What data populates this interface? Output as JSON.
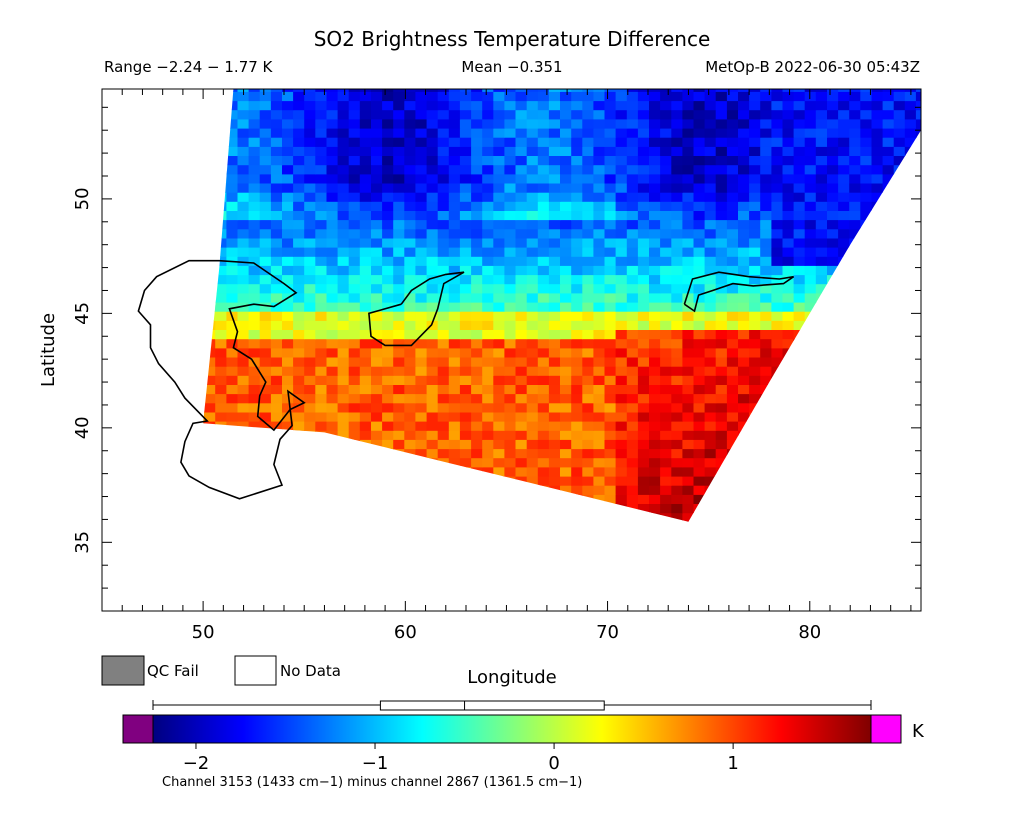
{
  "chart_data": {
    "type": "heatmap",
    "title": "SO2 Brightness Temperature Difference",
    "header": {
      "range": "Range −2.24 − 1.77 K",
      "mean": "Mean −0.351",
      "satellite": "MetOp-B 2022-06-30 05:43Z"
    },
    "xlabel": "Longitude",
    "ylabel": "Latitude",
    "xlim": [
      45,
      85.5
    ],
    "ylim": [
      32,
      54.8
    ],
    "x_ticks": [
      50,
      60,
      70,
      80
    ],
    "y_ticks": [
      35,
      40,
      45,
      50
    ],
    "swath": {
      "left_edge": [
        [
          51.5,
          54.8
        ],
        [
          50.8,
          47
        ],
        [
          50,
          40.2
        ]
      ],
      "bottom_edge": [
        [
          50,
          40.2
        ],
        [
          56,
          39.8
        ],
        [
          62,
          38.5
        ],
        [
          68,
          37.2
        ],
        [
          74,
          35.9
        ]
      ],
      "right_edge": [
        [
          74,
          35.9
        ],
        [
          78,
          42
        ],
        [
          82,
          48
        ],
        [
          85.5,
          53
        ]
      ],
      "top_lat": 54.8
    },
    "field_regions": [
      {
        "lon_range": [
          50,
          85.5
        ],
        "lat_range": [
          49,
          54.8
        ],
        "value": -1.6,
        "desc": "cold band north"
      },
      {
        "lon_range": [
          50,
          72
        ],
        "lat_range": [
          45,
          49
        ],
        "value": -0.5
      },
      {
        "lon_range": [
          50,
          70
        ],
        "lat_range": [
          43.5,
          45
        ],
        "value": 0.2
      },
      {
        "lon_range": [
          50,
          70
        ],
        "lat_range": [
          40,
          43.5
        ],
        "value": 0.9
      },
      {
        "lon_range": [
          70,
          79
        ],
        "lat_range": [
          36,
          44
        ],
        "value": 1.4
      }
    ],
    "legend": {
      "qc_fail": "QC Fail",
      "no_data": "No Data",
      "qc_color": "#808080",
      "nodata_color": "#ffffff"
    },
    "colorbar": {
      "ticks": [
        -2,
        -1,
        0,
        1
      ],
      "tick_labels": [
        "−2",
        "−1",
        "0",
        "1"
      ],
      "range": [
        -2.24,
        1.77
      ],
      "unit": "K",
      "under_color": "#800080",
      "over_color": "#ff00ff",
      "colors": [
        "#000080",
        "#0000ff",
        "#0080ff",
        "#00ffff",
        "#80ff80",
        "#ffff00",
        "#ff8000",
        "#ff0000",
        "#800000"
      ],
      "boxplot": {
        "whisker_low": -2.24,
        "q1": -0.97,
        "median": -0.5,
        "q3": 0.28,
        "whisker_high": 1.77
      }
    },
    "caption": "Channel 3153 (1433 cm−1) minus channel 2867 (1361.5 cm−1)",
    "coastlines": [
      {
        "name": "Caspian Sea",
        "points": [
          [
            50.8,
            47.3
          ],
          [
            52.5,
            47.2
          ],
          [
            54,
            46.3
          ],
          [
            54.6,
            45.9
          ],
          [
            53.5,
            45.3
          ],
          [
            52.5,
            45.4
          ],
          [
            51.3,
            45.2
          ],
          [
            51.7,
            44.2
          ],
          [
            51.5,
            43.5
          ],
          [
            52.4,
            43
          ],
          [
            53.1,
            42
          ],
          [
            52.8,
            41.4
          ],
          [
            52.7,
            40.5
          ],
          [
            53.5,
            39.9
          ],
          [
            54.3,
            40.8
          ],
          [
            55,
            41.1
          ],
          [
            54.2,
            41.6
          ],
          [
            54.4,
            40.1
          ],
          [
            53.8,
            39.5
          ],
          [
            53.5,
            38.4
          ],
          [
            53.9,
            37.5
          ],
          [
            51.8,
            36.9
          ],
          [
            50.3,
            37.4
          ],
          [
            49.3,
            37.9
          ],
          [
            48.9,
            38.5
          ],
          [
            49.1,
            39.4
          ],
          [
            49.5,
            40.2
          ],
          [
            50.2,
            40.3
          ],
          [
            49.1,
            41.3
          ],
          [
            48.6,
            42
          ],
          [
            47.8,
            42.8
          ],
          [
            47.4,
            43.5
          ],
          [
            47.4,
            44.5
          ],
          [
            46.8,
            45.1
          ],
          [
            47.1,
            46
          ],
          [
            47.7,
            46.6
          ],
          [
            49.3,
            47.3
          ],
          [
            50.8,
            47.3
          ]
        ]
      },
      {
        "name": "Aral Sea",
        "points": [
          [
            59.8,
            45.4
          ],
          [
            60.3,
            46
          ],
          [
            61.2,
            46.5
          ],
          [
            62,
            46.7
          ],
          [
            62.9,
            46.8
          ],
          [
            61.9,
            46.3
          ],
          [
            61.6,
            45.2
          ],
          [
            61.3,
            44.5
          ],
          [
            60.3,
            43.6
          ],
          [
            59,
            43.6
          ],
          [
            58.3,
            44
          ],
          [
            58.2,
            45
          ],
          [
            59.8,
            45.4
          ]
        ]
      },
      {
        "name": "Lake Balkhash",
        "points": [
          [
            73.8,
            45.4
          ],
          [
            74.2,
            46.5
          ],
          [
            75.5,
            46.8
          ],
          [
            77,
            46.6
          ],
          [
            78.5,
            46.5
          ],
          [
            79.2,
            46.6
          ],
          [
            78.7,
            46.3
          ],
          [
            77.2,
            46.2
          ],
          [
            76.2,
            46.3
          ],
          [
            75.2,
            46
          ],
          [
            74.5,
            45.8
          ],
          [
            74.3,
            45.1
          ],
          [
            73.8,
            45.4
          ]
        ]
      }
    ]
  }
}
